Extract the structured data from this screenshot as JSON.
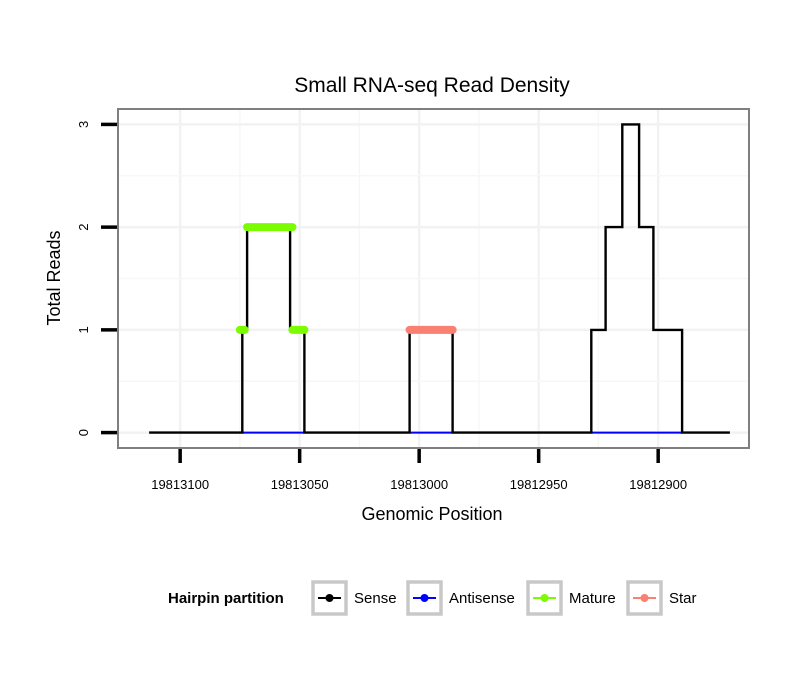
{
  "chart_data": {
    "type": "line",
    "title": "Small RNA-seq Read Density",
    "xlabel": "Genomic Position",
    "ylabel": "Total Reads",
    "x_reversed": true,
    "xlim": [
      19813126,
      19812862
    ],
    "ylim": [
      -0.15,
      3.15
    ],
    "xticks": [
      19813100,
      19813050,
      19813000,
      19812950,
      19812900
    ],
    "xtick_labels": [
      "19813100",
      "19813050",
      "19813000",
      "19812950",
      "19812900"
    ],
    "yticks": [
      0,
      1,
      2,
      3
    ],
    "ytick_labels": [
      "0",
      "1",
      "2",
      "3"
    ],
    "grid": true,
    "legend": {
      "title": "Hairpin partition",
      "position": "bottom",
      "entries": [
        {
          "name": "Sense",
          "color": "#000000"
        },
        {
          "name": "Antisense",
          "color": "#0000ff"
        },
        {
          "name": "Mature",
          "color": "#7cfc00"
        },
        {
          "name": "Star",
          "color": "#fa8072"
        }
      ]
    },
    "series": [
      {
        "name": "Sense",
        "color": "#000000",
        "steps": [
          [
            19813113,
            0
          ],
          [
            19813074,
            0
          ],
          [
            19813074,
            1
          ],
          [
            19813072,
            1
          ],
          [
            19813072,
            2
          ],
          [
            19813054,
            2
          ],
          [
            19813054,
            1
          ],
          [
            19813048,
            1
          ],
          [
            19813048,
            0
          ],
          [
            19813004,
            0
          ],
          [
            19813004,
            1
          ],
          [
            19812986,
            1
          ],
          [
            19812986,
            0
          ],
          [
            19812928,
            0
          ],
          [
            19812928,
            1
          ],
          [
            19812922,
            1
          ],
          [
            19812922,
            2
          ],
          [
            19812915,
            2
          ],
          [
            19812915,
            3
          ],
          [
            19812908,
            3
          ],
          [
            19812908,
            2
          ],
          [
            19812902,
            2
          ],
          [
            19812902,
            1
          ],
          [
            19812890,
            1
          ],
          [
            19812890,
            0
          ],
          [
            19812870,
            0
          ]
        ]
      },
      {
        "name": "Antisense",
        "color": "#0000ff",
        "steps": [
          [
            19813074,
            0
          ],
          [
            19813048,
            0
          ],
          [
            19813004,
            0
          ],
          [
            19812986,
            0
          ],
          [
            19812928,
            0
          ],
          [
            19812890,
            0
          ]
        ]
      },
      {
        "name": "Mature",
        "color": "#7cfc00",
        "segments": [
          {
            "start": 19813075,
            "end": 19813073,
            "value": 1
          },
          {
            "start": 19813072,
            "end": 19813053,
            "value": 2
          },
          {
            "start": 19813053,
            "end": 19813048,
            "value": 1
          }
        ]
      },
      {
        "name": "Star",
        "color": "#fa8072",
        "segments": [
          {
            "start": 19813004,
            "end": 19812986,
            "value": 1
          }
        ]
      }
    ]
  }
}
